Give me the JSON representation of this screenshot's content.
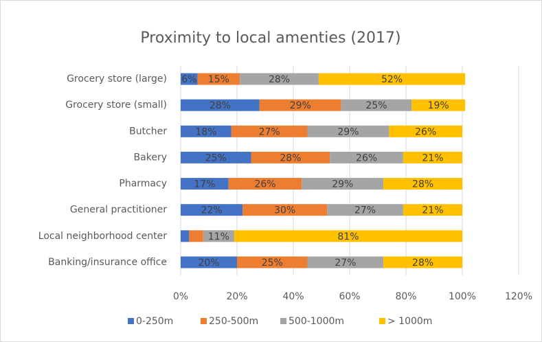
{
  "chart_data": {
    "type": "stacked-bar-horizontal",
    "title": "Proximity to local amenties (2017)",
    "categories": [
      "Grocery store (large)",
      "Grocery store (small)",
      "Butcher",
      "Bakery",
      "Pharmacy",
      "General practitioner",
      "Local neighborhood center",
      "Banking/insurance office"
    ],
    "series": [
      {
        "name": "0-250m",
        "color": "#4472c4",
        "values": [
          6,
          28,
          18,
          25,
          17,
          22,
          3,
          20
        ],
        "value_labels": [
          "6%",
          "28%",
          "18%",
          "25%",
          "17%",
          "22%",
          null,
          "20%"
        ]
      },
      {
        "name": "250-500m",
        "color": "#ed7d31",
        "values": [
          15,
          29,
          27,
          28,
          26,
          30,
          5,
          25
        ],
        "value_labels": [
          "15%",
          "29%",
          "27%",
          "28%",
          "26%",
          "30%",
          null,
          "25%"
        ]
      },
      {
        "name": "500-1000m",
        "color": "#a5a5a5",
        "values": [
          28,
          25,
          29,
          26,
          29,
          27,
          11,
          27
        ],
        "value_labels": [
          "28%",
          "25%",
          "29%",
          "26%",
          "29%",
          "27%",
          "11%",
          "27%"
        ]
      },
      {
        "name": "> 1000m",
        "color": "#ffc000",
        "values": [
          52,
          19,
          26,
          21,
          28,
          21,
          81,
          28
        ],
        "value_labels": [
          "52%",
          "19%",
          "26%",
          "21%",
          "28%",
          "21%",
          "81%",
          "28%"
        ]
      }
    ],
    "xlim": [
      0,
      120
    ],
    "xticks": [
      {
        "value": 0,
        "label": "0%"
      },
      {
        "value": 20,
        "label": "20%"
      },
      {
        "value": 40,
        "label": "40%"
      },
      {
        "value": 60,
        "label": "60%"
      },
      {
        "value": 80,
        "label": "80%"
      },
      {
        "value": 100,
        "label": "100%"
      },
      {
        "value": 120,
        "label": "120%"
      }
    ],
    "grid": true,
    "legend": "bottom"
  }
}
